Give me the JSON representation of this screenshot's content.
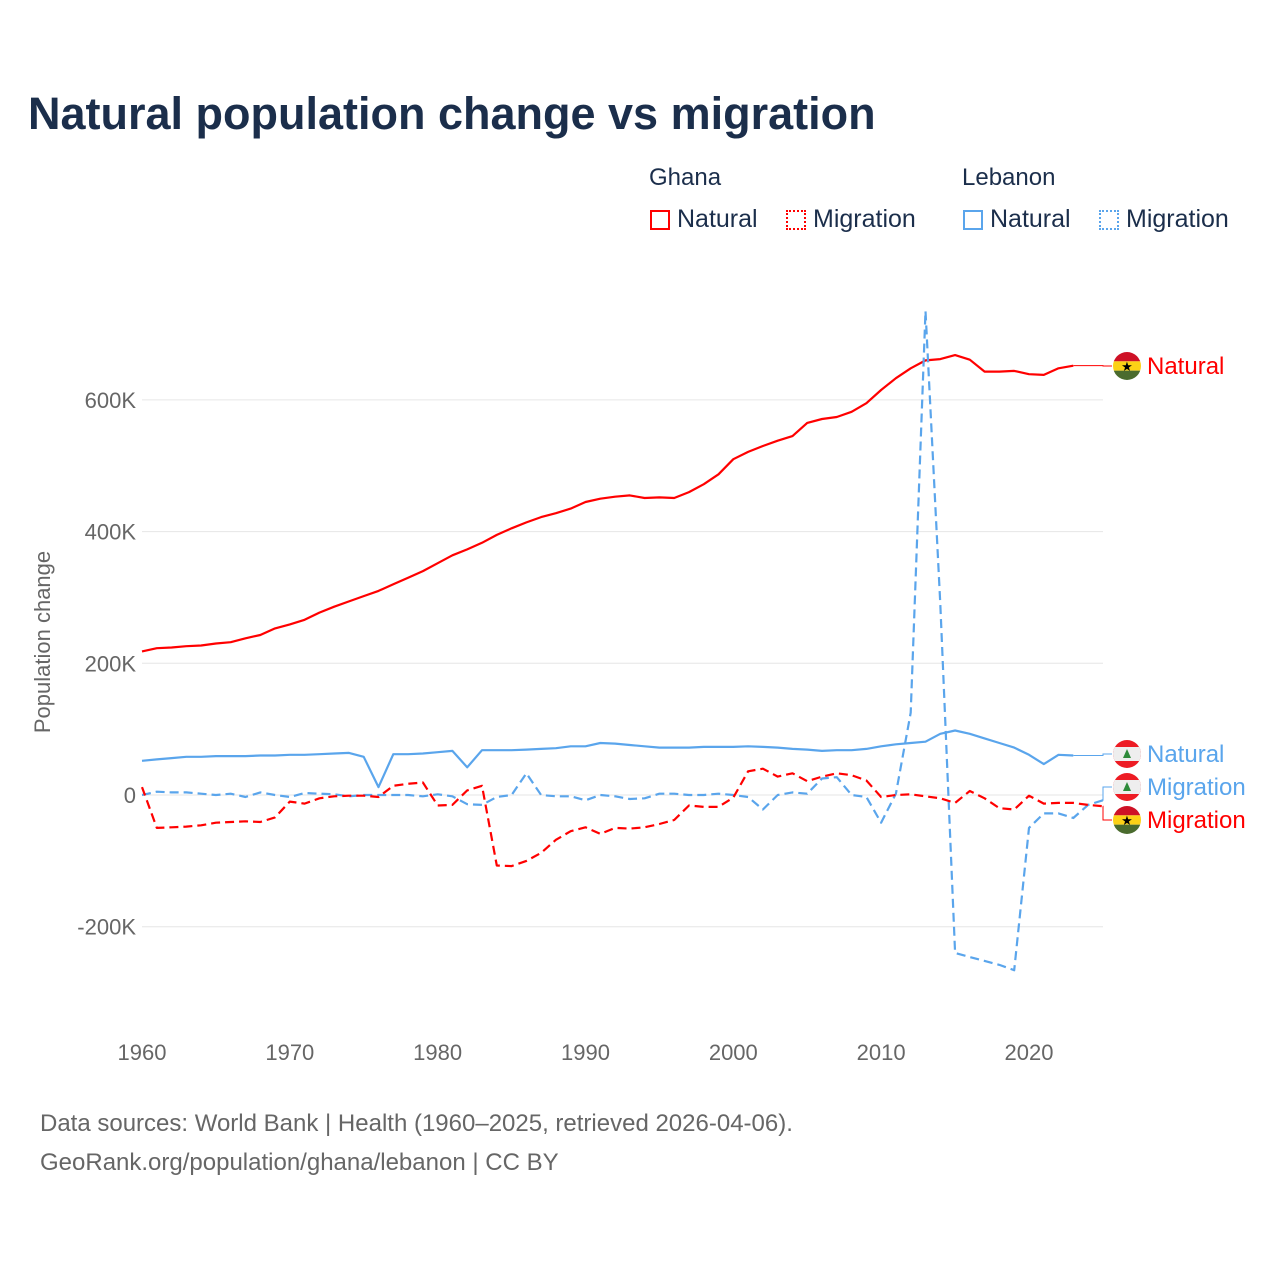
{
  "title": "Natural population change vs migration",
  "legend": {
    "groups": [
      {
        "name": "Ghana",
        "items": [
          {
            "label": "Natural",
            "style": "solid",
            "color": "#ff0000"
          },
          {
            "label": "Migration",
            "style": "dotted",
            "color": "#ff0000"
          }
        ]
      },
      {
        "name": "Lebanon",
        "items": [
          {
            "label": "Natural",
            "style": "solid",
            "color": "#5aa5ec"
          },
          {
            "label": "Migration",
            "style": "dotted",
            "color": "#5aa5ec"
          }
        ]
      }
    ]
  },
  "footer": {
    "line1": "Data sources: World Bank | Health (1960–2025, retrieved 2026-04-06).",
    "line2": "GeoRank.org/population/ghana/lebanon | CC BY"
  },
  "chart_data": {
    "type": "line",
    "title": "Natural population change vs migration",
    "xlabel": "",
    "ylabel": "Population change",
    "xlim": [
      1960,
      2025
    ],
    "ylim": [
      -300000,
      750000
    ],
    "grid": true,
    "legend_position": "top-right",
    "x_ticks": [
      1960,
      1970,
      1980,
      1990,
      2000,
      2010,
      2020
    ],
    "x_tick_labels": [
      "1960",
      "1970",
      "1980",
      "1990",
      "2000",
      "2010",
      "2020"
    ],
    "y_ticks": [
      -200,
      0,
      200,
      400,
      600
    ],
    "y_tick_labels": [
      "-200K",
      "0",
      "200K",
      "400K",
      "600K"
    ],
    "units": "thousands",
    "series": [
      {
        "name": "Ghana Natural",
        "end_label": "Natural",
        "color": "#ff0000",
        "dash": false,
        "start": 1960,
        "values": [
          218,
          223,
          224,
          226,
          227,
          230,
          232,
          238,
          243,
          253,
          259,
          266,
          277,
          286,
          294,
          302,
          310,
          320,
          330,
          340,
          352,
          364,
          373,
          383,
          395,
          405,
          414,
          422,
          428,
          435,
          445,
          450,
          453,
          455,
          451,
          452,
          451,
          460,
          472,
          487,
          510,
          521,
          530,
          538,
          545,
          565,
          571,
          574,
          582,
          595,
          615,
          633,
          648,
          660,
          662,
          668,
          661,
          643,
          643,
          644,
          639,
          638,
          648,
          652
        ]
      },
      {
        "name": "Lebanon Natural",
        "end_label": "Natural",
        "color": "#5aa5ec",
        "dash": false,
        "start": 1960,
        "values": [
          52,
          54,
          56,
          58,
          58,
          59,
          59,
          59,
          60,
          60,
          61,
          61,
          62,
          63,
          64,
          58,
          12,
          62,
          62,
          63,
          65,
          67,
          42,
          68,
          68,
          68,
          69,
          70,
          71,
          74,
          74,
          79,
          78,
          76,
          74,
          72,
          72,
          72,
          73,
          73,
          73,
          74,
          73,
          72,
          70,
          69,
          67,
          68,
          68,
          70,
          74,
          77,
          79,
          81,
          93,
          98,
          93,
          86,
          79,
          72,
          61,
          47,
          61,
          60
        ]
      },
      {
        "name": "Lebanon Migration",
        "end_label": "Migration",
        "color": "#5aa5ec",
        "dash": true,
        "start": 1960,
        "values": [
          0,
          5,
          4,
          4,
          2,
          0,
          2,
          -3,
          4,
          0,
          -3,
          3,
          2,
          1,
          -2,
          0,
          0,
          0,
          0,
          -2,
          1,
          -2,
          -14,
          -15,
          -3,
          0,
          33,
          0,
          -2,
          -2,
          -8,
          0,
          -2,
          -6,
          -5,
          2,
          2,
          0,
          0,
          2,
          0,
          -3,
          -22,
          0,
          4,
          2,
          25,
          27,
          0,
          -3,
          -42,
          2,
          125,
          735,
          290,
          -240,
          -246,
          -252,
          -258,
          -266,
          -50,
          -28,
          -28,
          -35,
          -15,
          -8
        ]
      },
      {
        "name": "Ghana Migration",
        "end_label": "Migration",
        "color": "#ff0000",
        "dash": true,
        "start": 1960,
        "values": [
          12,
          -50,
          -49,
          -48,
          -46,
          -42,
          -41,
          -40,
          -41,
          -34,
          -10,
          -13,
          -5,
          -2,
          -1,
          -1,
          -3,
          14,
          17,
          19,
          -16,
          -15,
          7,
          14,
          -107,
          -108,
          -100,
          -88,
          -68,
          -55,
          -49,
          -59,
          -50,
          -51,
          -49,
          -44,
          -38,
          -16,
          -18,
          -18,
          -4,
          36,
          40,
          28,
          33,
          21,
          28,
          33,
          30,
          22,
          -3,
          0,
          1,
          -2,
          -5,
          -12,
          6,
          -5,
          -20,
          -22,
          -1,
          -13,
          -12,
          -12,
          -15,
          -17
        ]
      }
    ]
  }
}
